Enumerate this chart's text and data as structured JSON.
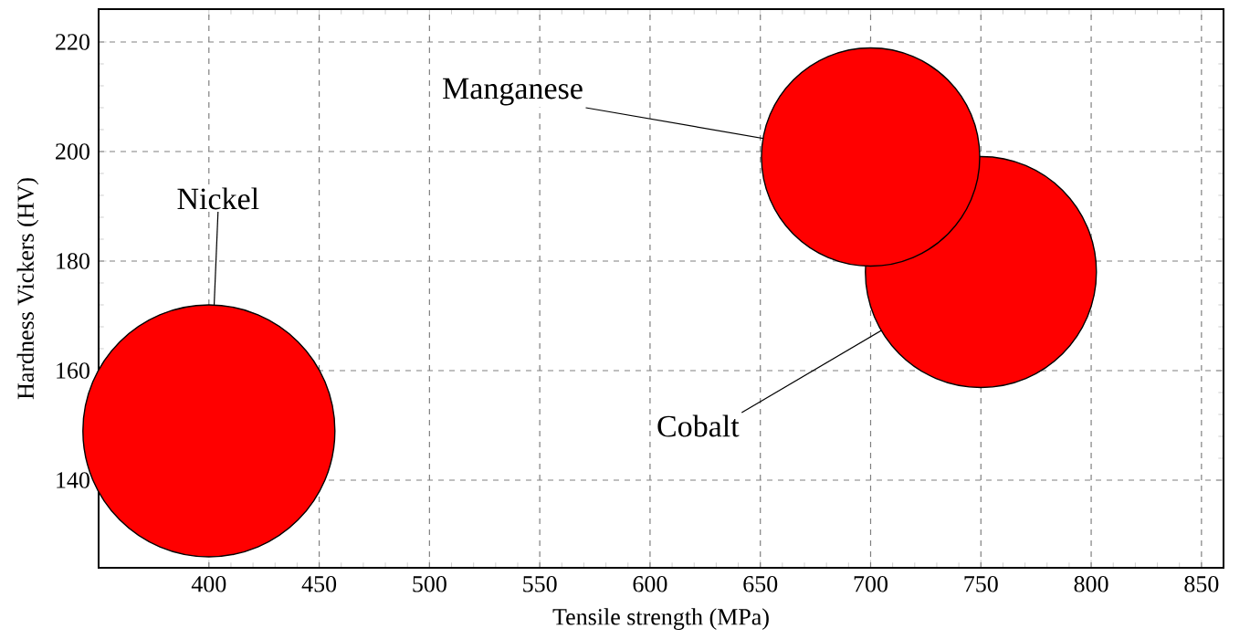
{
  "chart_data": {
    "type": "bubble",
    "xlabel": "Tensile strength (MPa)",
    "ylabel": "Hardness Vickers (HV)",
    "x": [
      400,
      700,
      750
    ],
    "values": [
      149,
      199,
      178
    ],
    "sizes": [
      1,
      0.75,
      0.84
    ],
    "color": "#ff0000",
    "xlim": [
      350,
      860
    ],
    "ylim": [
      124,
      226
    ],
    "xticks": [
      400,
      450,
      500,
      550,
      600,
      650,
      700,
      750,
      800,
      850
    ],
    "yticks": [
      140,
      160,
      180,
      200,
      220
    ],
    "grid": true,
    "marker": "circle",
    "annotations": [
      {
        "text": "Nickel",
        "x": 400,
        "y": 149
      },
      {
        "text": "Manganese",
        "x": 700,
        "y": 199
      },
      {
        "text": "Cobalt",
        "x": 750,
        "y": 178
      }
    ]
  }
}
